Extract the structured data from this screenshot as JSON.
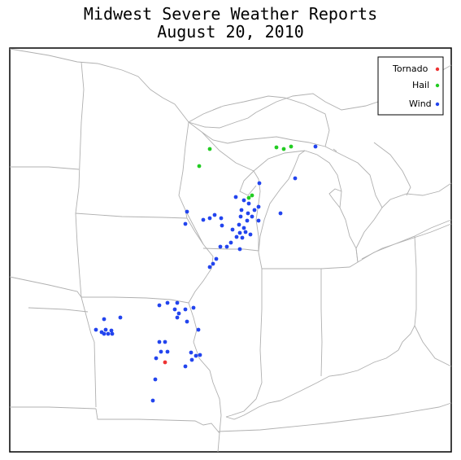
{
  "title": {
    "line1": "Midwest Severe Weather Reports",
    "line2": "August 20, 2010"
  },
  "legend": {
    "placement": "top-right",
    "items": [
      {
        "label": "Tornado",
        "color": "#ee3333"
      },
      {
        "label": "Hail",
        "color": "#22cc22"
      },
      {
        "label": "Wind",
        "color": "#2244ee"
      }
    ]
  },
  "colors": {
    "frame": "#000000",
    "borders": "#aaaaaa"
  }
}
